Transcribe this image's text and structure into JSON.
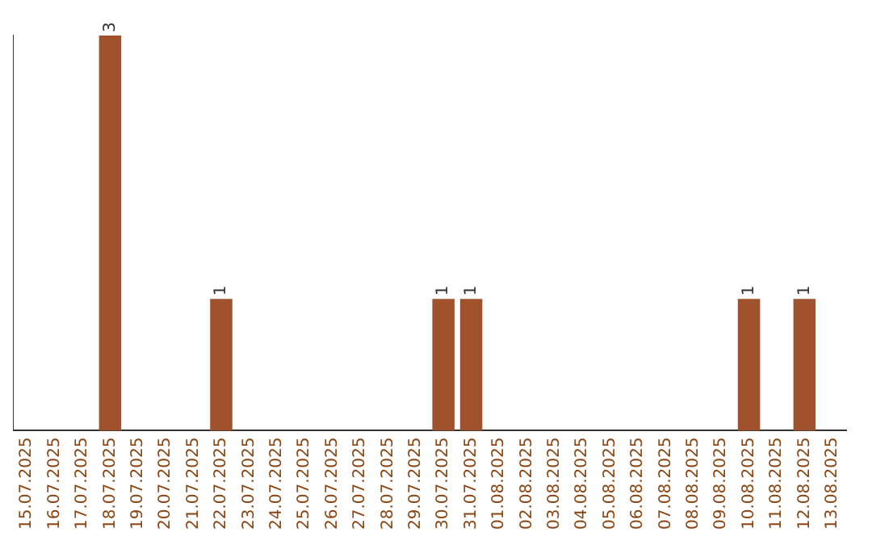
{
  "chart_data": {
    "type": "bar",
    "categories": [
      "15.07.2025",
      "16.07.2025",
      "17.07.2025",
      "18.07.2025",
      "19.07.2025",
      "20.07.2025",
      "21.07.2025",
      "22.07.2025",
      "23.07.2025",
      "24.07.2025",
      "25.07.2025",
      "26.07.2025",
      "27.07.2025",
      "28.07.2025",
      "29.07.2025",
      "30.07.2025",
      "31.07.2025",
      "01.08.2025",
      "02.08.2025",
      "03.08.2025",
      "04.08.2025",
      "05.08.2025",
      "06.08.2025",
      "07.08.2025",
      "08.08.2025",
      "09.08.2025",
      "10.08.2025",
      "11.08.2025",
      "12.08.2025",
      "13.08.2025"
    ],
    "values": [
      0,
      0,
      0,
      3,
      0,
      0,
      0,
      1,
      0,
      0,
      0,
      0,
      0,
      0,
      0,
      1,
      1,
      0,
      0,
      0,
      0,
      0,
      0,
      0,
      0,
      0,
      1,
      0,
      1,
      0
    ],
    "value_labels": [
      null,
      null,
      null,
      "3",
      null,
      null,
      null,
      "1",
      null,
      null,
      null,
      null,
      null,
      null,
      null,
      "1",
      "1",
      null,
      null,
      null,
      null,
      null,
      null,
      null,
      null,
      null,
      "1",
      null,
      "1",
      null
    ],
    "color": "#a0522d",
    "grid": false,
    "legend": false,
    "tick_labels": "x"
  }
}
